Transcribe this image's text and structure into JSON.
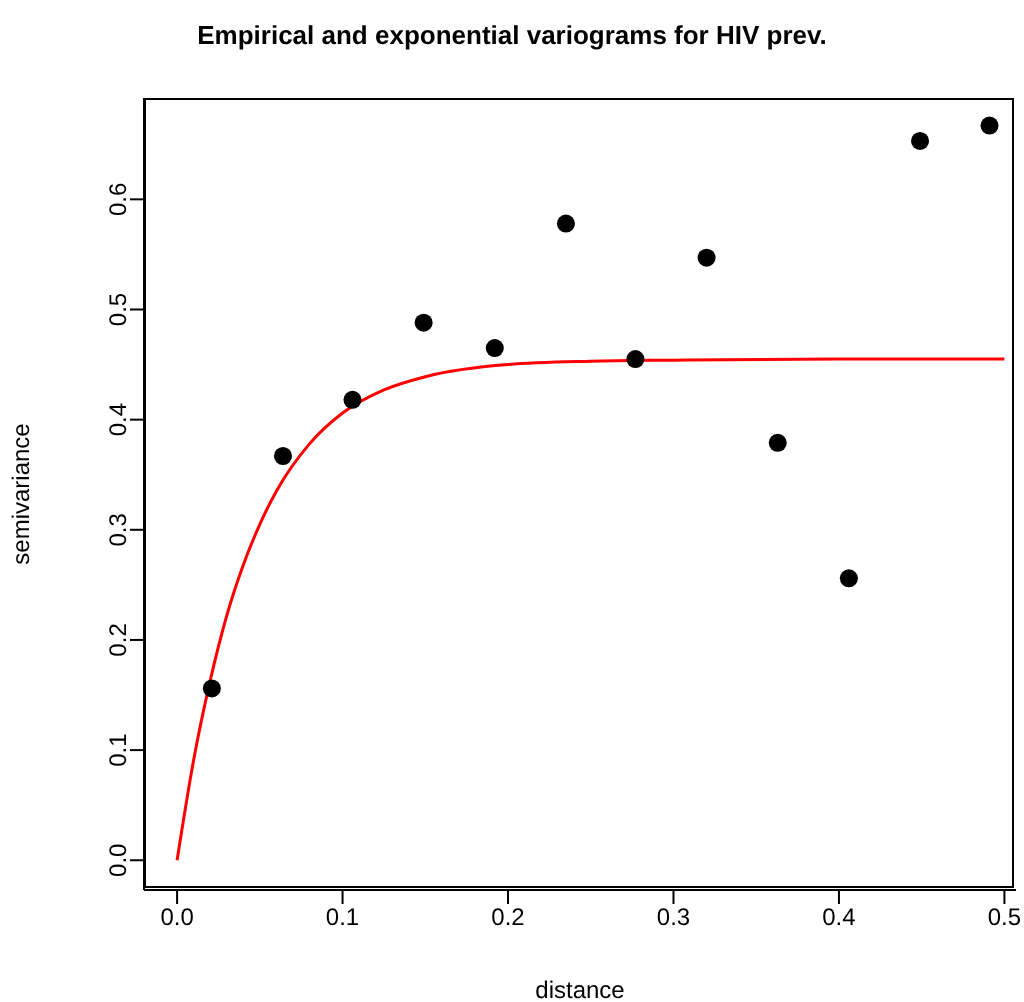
{
  "chart_data": {
    "type": "scatter",
    "title": "Empirical and exponential variograms for HIV prev.",
    "xlabel": "distance",
    "ylabel": "semivariance",
    "xlim": [
      -0.02,
      0.507
    ],
    "ylim": [
      -0.027,
      0.692
    ],
    "xticks": [
      {
        "value": 0,
        "label": "0.0"
      },
      0.1,
      0.2,
      0.3,
      0.4,
      0.5
    ],
    "yticks": [
      {
        "value": 0,
        "label": "0.0"
      },
      0.1,
      0.2,
      0.3,
      0.4,
      0.5,
      0.6
    ],
    "legend": false,
    "marker": "circle",
    "series": [
      {
        "color": "#000000",
        "x": [
          0.021,
          0.064,
          0.106,
          0.149,
          0.192,
          0.235,
          0.277,
          0.32,
          0.363,
          0.406,
          0.449,
          0.491
        ],
        "values": [
          0.156,
          0.367,
          0.418,
          0.488,
          0.465,
          0.578,
          0.455,
          0.547,
          0.379,
          0.256,
          0.653,
          0.667
        ]
      },
      {
        "type": "line",
        "color": "#ff0000",
        "marker": "none",
        "line_style": "solid",
        "x": [
          0,
          0.01,
          0.02,
          0.03,
          0.04,
          0.05,
          0.06,
          0.08,
          0.1,
          0.125,
          0.15,
          0.2,
          0.25,
          0.3,
          0.4,
          0.5
        ],
        "values": [
          0,
          0.091,
          0.163,
          0.222,
          0.268,
          0.305,
          0.335,
          0.378,
          0.406,
          0.427,
          0.439,
          0.45,
          0.453,
          0.454,
          0.455,
          0.455
        ]
      }
    ]
  }
}
